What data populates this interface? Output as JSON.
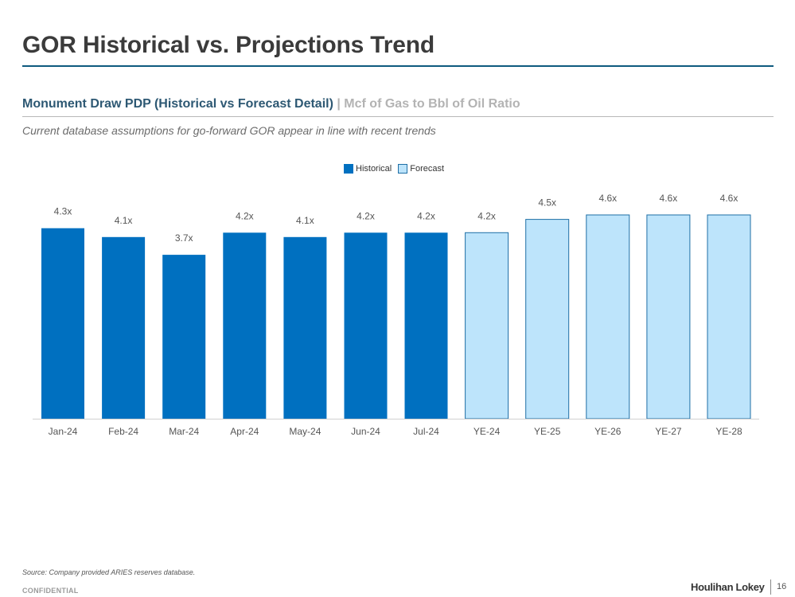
{
  "page": {
    "title": "GOR Historical vs. Projections Trend",
    "subtitle_main": "Monument Draw PDP (Historical vs Forecast Detail)",
    "subtitle_sep": " | ",
    "subtitle_desc": "Mcf of Gas to Bbl of Oil Ratio",
    "note": "Current database assumptions for go-forward GOR appear in line with recent trends",
    "source": "Source: Company provided ARIES reserves database.",
    "confidential": "CONFIDENTIAL",
    "brand": "Houlihan Lokey",
    "page_number": "16"
  },
  "colors": {
    "historical_fill": "#0070c0",
    "forecast_fill": "#bde4fb",
    "forecast_stroke": "#1f6fa6",
    "axis": "#d0d0d0",
    "tick_text": "#555555",
    "label_text": "#555555"
  },
  "chart_data": {
    "type": "bar",
    "title": "",
    "xlabel": "",
    "ylabel": "",
    "ylim": [
      0,
      4.6
    ],
    "grid": false,
    "legend_position": "top-center",
    "categories": [
      "Jan-24",
      "Feb-24",
      "Mar-24",
      "Apr-24",
      "May-24",
      "Jun-24",
      "Jul-24",
      "YE-24",
      "YE-25",
      "YE-26",
      "YE-27",
      "YE-28"
    ],
    "values": [
      4.3,
      4.1,
      3.7,
      4.2,
      4.1,
      4.2,
      4.2,
      4.2,
      4.5,
      4.6,
      4.6,
      4.6
    ],
    "labels": [
      "4.3x",
      "4.1x",
      "3.7x",
      "4.2x",
      "4.1x",
      "4.2x",
      "4.2x",
      "4.2x",
      "4.5x",
      "4.6x",
      "4.6x",
      "4.6x"
    ],
    "series_type": [
      "Historical",
      "Historical",
      "Historical",
      "Historical",
      "Historical",
      "Historical",
      "Historical",
      "Forecast",
      "Forecast",
      "Forecast",
      "Forecast",
      "Forecast"
    ],
    "legend": [
      "Historical",
      "Forecast"
    ]
  }
}
